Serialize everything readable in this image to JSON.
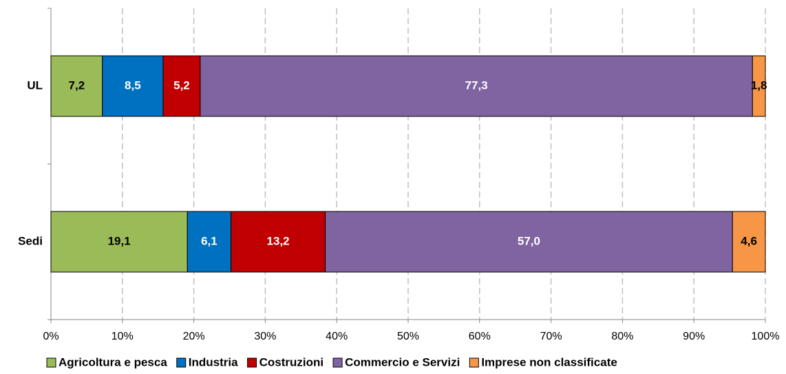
{
  "chart_data": {
    "type": "stacked_barh",
    "categories": [
      "UL",
      "Sedi"
    ],
    "series": [
      {
        "name": "Agricoltura e pesca",
        "color": "#9bbb59",
        "label_color": "#000000",
        "values": [
          7.2,
          19.1
        ],
        "value_labels": [
          "7,2",
          "19,1"
        ]
      },
      {
        "name": "Industria",
        "color": "#0070c0",
        "label_color": "#ffffff",
        "values": [
          8.5,
          6.1
        ],
        "value_labels": [
          "8,5",
          "6,1"
        ]
      },
      {
        "name": "Costruzioni",
        "color": "#c00000",
        "label_color": "#ffffff",
        "values": [
          5.2,
          13.2
        ],
        "value_labels": [
          "5,2",
          "13,2"
        ]
      },
      {
        "name": "Commercio e Servizi",
        "color": "#8064a2",
        "label_color": "#ffffff",
        "values": [
          77.3,
          57.0
        ],
        "value_labels": [
          "77,3",
          "57,0"
        ]
      },
      {
        "name": "Imprese non classificate",
        "color": "#f79646",
        "label_color": "#000000",
        "values": [
          1.8,
          4.6
        ],
        "value_labels": [
          "1,8",
          "4,6"
        ]
      }
    ],
    "xlim": [
      0,
      100
    ],
    "xticks": [
      {
        "value": 0,
        "label": "0%"
      },
      {
        "value": 10,
        "label": "10%"
      },
      {
        "value": 20,
        "label": "20%"
      },
      {
        "value": 30,
        "label": "30%"
      },
      {
        "value": 40,
        "label": "40%"
      },
      {
        "value": 50,
        "label": "50%"
      },
      {
        "value": 60,
        "label": "60%"
      },
      {
        "value": 70,
        "label": "70%"
      },
      {
        "value": 80,
        "label": "80%"
      },
      {
        "value": 90,
        "label": "90%"
      },
      {
        "value": 100,
        "label": "100%"
      }
    ],
    "grid": true,
    "legend": "bottom"
  }
}
